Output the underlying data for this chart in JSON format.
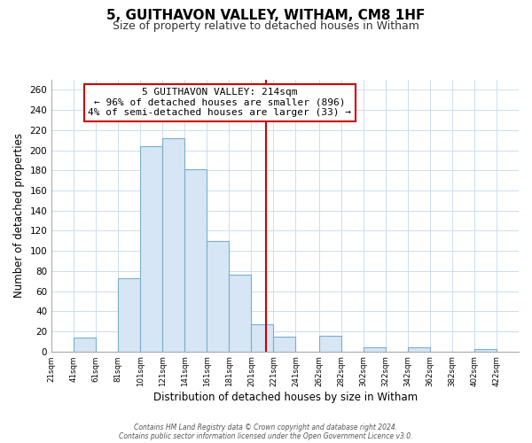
{
  "title": "5, GUITHAVON VALLEY, WITHAM, CM8 1HF",
  "subtitle": "Size of property relative to detached houses in Witham",
  "xlabel": "Distribution of detached houses by size in Witham",
  "ylabel": "Number of detached properties",
  "bar_left_edges": [
    21,
    41,
    61,
    81,
    101,
    121,
    141,
    161,
    181,
    201,
    221,
    241,
    262,
    282,
    302,
    322,
    342,
    362,
    382,
    402
  ],
  "bar_heights": [
    0,
    14,
    0,
    73,
    204,
    212,
    181,
    110,
    76,
    27,
    15,
    0,
    16,
    0,
    4,
    0,
    4,
    0,
    0,
    2
  ],
  "bar_widths": [
    20,
    20,
    20,
    20,
    20,
    20,
    20,
    20,
    20,
    20,
    20,
    21,
    20,
    20,
    20,
    20,
    20,
    20,
    20,
    20
  ],
  "bar_color": "#d6e6f4",
  "bar_edge_color": "#7aafcc",
  "bar_linewidth": 0.8,
  "vline_x": 214,
  "vline_color": "#cc0000",
  "vline_linewidth": 1.5,
  "annotation_title": "5 GUITHAVON VALLEY: 214sqm",
  "annotation_line1": "← 96% of detached houses are smaller (896)",
  "annotation_line2": "4% of semi-detached houses are larger (33) →",
  "annotation_box_color": "#ffffff",
  "annotation_border_color": "#cc0000",
  "xlim": [
    21,
    442
  ],
  "ylim": [
    0,
    270
  ],
  "yticks": [
    0,
    20,
    40,
    60,
    80,
    100,
    120,
    140,
    160,
    180,
    200,
    220,
    240,
    260
  ],
  "xtick_labels": [
    "21sqm",
    "41sqm",
    "61sqm",
    "81sqm",
    "101sqm",
    "121sqm",
    "141sqm",
    "161sqm",
    "181sqm",
    "201sqm",
    "221sqm",
    "241sqm",
    "262sqm",
    "282sqm",
    "302sqm",
    "322sqm",
    "342sqm",
    "362sqm",
    "382sqm",
    "402sqm",
    "422sqm"
  ],
  "xtick_positions": [
    21,
    41,
    61,
    81,
    101,
    121,
    141,
    161,
    181,
    201,
    221,
    241,
    262,
    282,
    302,
    322,
    342,
    362,
    382,
    402,
    422
  ],
  "grid_color": "#ccddee",
  "background_color": "#ffffff",
  "footer_line1": "Contains HM Land Registry data © Crown copyright and database right 2024.",
  "footer_line2": "Contains public sector information licensed under the Open Government Licence v3.0."
}
